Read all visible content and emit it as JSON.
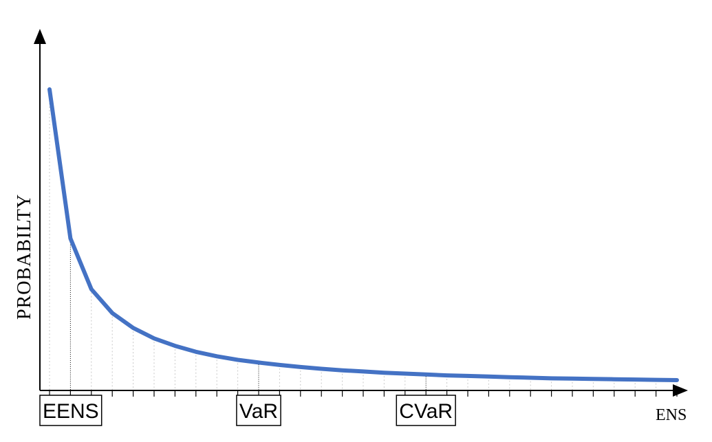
{
  "chart_data": {
    "type": "line",
    "ylabel": "PROBABILTY",
    "xlabel": "ENS",
    "n_points": 31,
    "series": [
      {
        "values": [
          1.0,
          0.5,
          0.33,
          0.25,
          0.2,
          0.165,
          0.14,
          0.12,
          0.105,
          0.093,
          0.084,
          0.076,
          0.069,
          0.063,
          0.058,
          0.054,
          0.05,
          0.047,
          0.044,
          0.041,
          0.039,
          0.037,
          0.035,
          0.033,
          0.031,
          0.03,
          0.029,
          0.028,
          0.027,
          0.026,
          0.025
        ]
      }
    ],
    "line_color": "#4472c4",
    "markers": [
      {
        "label": "EENS",
        "index": 1
      },
      {
        "label": "VaR",
        "index": 10
      },
      {
        "label": "CVaR",
        "index": 18
      }
    ]
  }
}
